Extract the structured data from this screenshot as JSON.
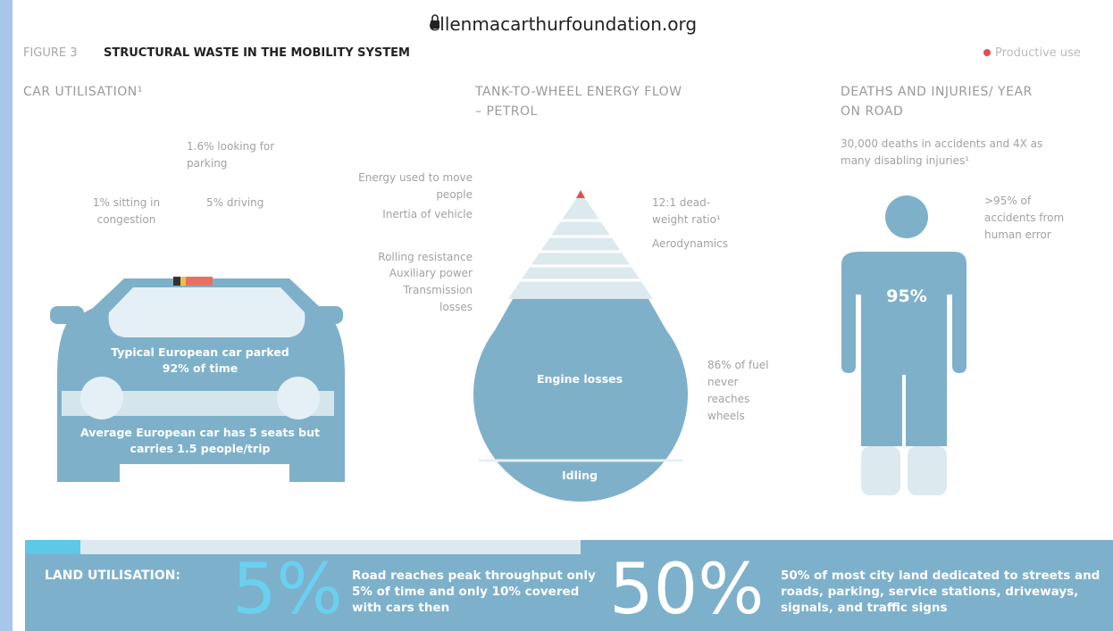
{
  "browser": {
    "url": "ellenmacarthurfoundation.org"
  },
  "header": {
    "figure_label": "FIGURE 3",
    "title": "STRUCTURAL WASTE IN THE MOBILITY SYSTEM",
    "legend": "Productive use"
  },
  "car": {
    "title": "CAR UTILISATION¹",
    "labels": [
      "1.6% looking for parking",
      "1% sitting in congestion",
      "5% driving"
    ],
    "parked": "Typical European car parked 92% of time",
    "seats": "Average European car has 5 seats but carries 1.5 people/trip"
  },
  "energy": {
    "title": "TANK-TO-WHEEL ENERGY FLOW – PETROL",
    "left_labels": [
      "Energy used to move people",
      "Inertia of vehicle",
      "Rolling resistance",
      "Auxiliary power",
      "Transmission losses"
    ],
    "right_labels": [
      "12:1 dead-weight ratio¹",
      "Aerodynamics",
      "86% of fuel never reaches wheels"
    ],
    "engine": "Engine losses",
    "idling": "Idling"
  },
  "deaths": {
    "title": "DEATHS AND INJURIES/ YEAR ON ROAD",
    "note": "30,000 deaths in accidents and 4X as many disabling injuries¹",
    "human_error": ">95% of accidents from human error",
    "figure_value": "95%"
  },
  "land": {
    "title": "LAND UTILISATION:",
    "stat1": "5%",
    "text1": "Road reaches peak throughput only 5% of time and only 10% covered with cars then",
    "stat2": "50%",
    "text2": "50% of most city land dedicated to streets and roads, parking, service stations, driveways, signals, and traffic signs"
  }
}
